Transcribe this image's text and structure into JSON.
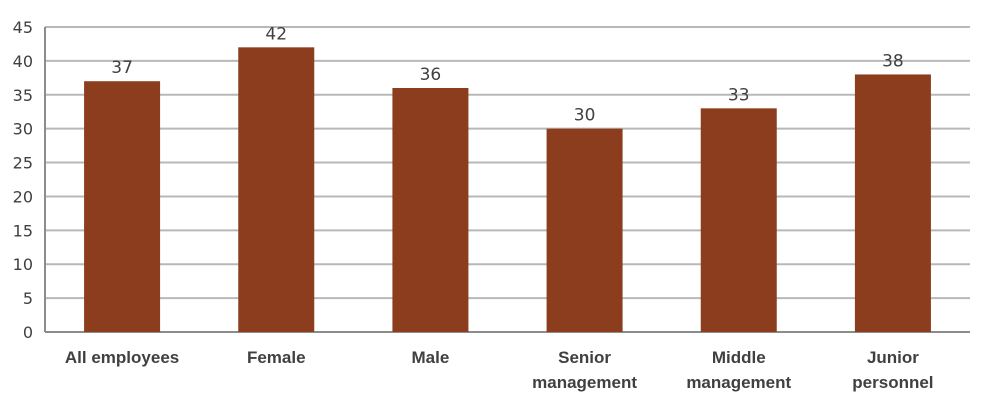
{
  "chart_data": {
    "type": "bar",
    "categories": [
      [
        "All employees"
      ],
      [
        "Female"
      ],
      [
        "Male"
      ],
      [
        "Senior",
        "management"
      ],
      [
        "Middle",
        "management"
      ],
      [
        "Junior",
        "personnel"
      ]
    ],
    "values": [
      37,
      42,
      36,
      30,
      33,
      38
    ],
    "data_labels": [
      "37",
      "42",
      "36",
      "30",
      "33",
      "38"
    ],
    "y_ticks": [
      "0",
      "5",
      "10",
      "15",
      "20",
      "25",
      "30",
      "35",
      "40",
      "45"
    ],
    "ylim": [
      0,
      45
    ],
    "grid": true,
    "legend": "none",
    "bar_color": "#8B3D1E",
    "grid_color": "#b8b8b8"
  }
}
